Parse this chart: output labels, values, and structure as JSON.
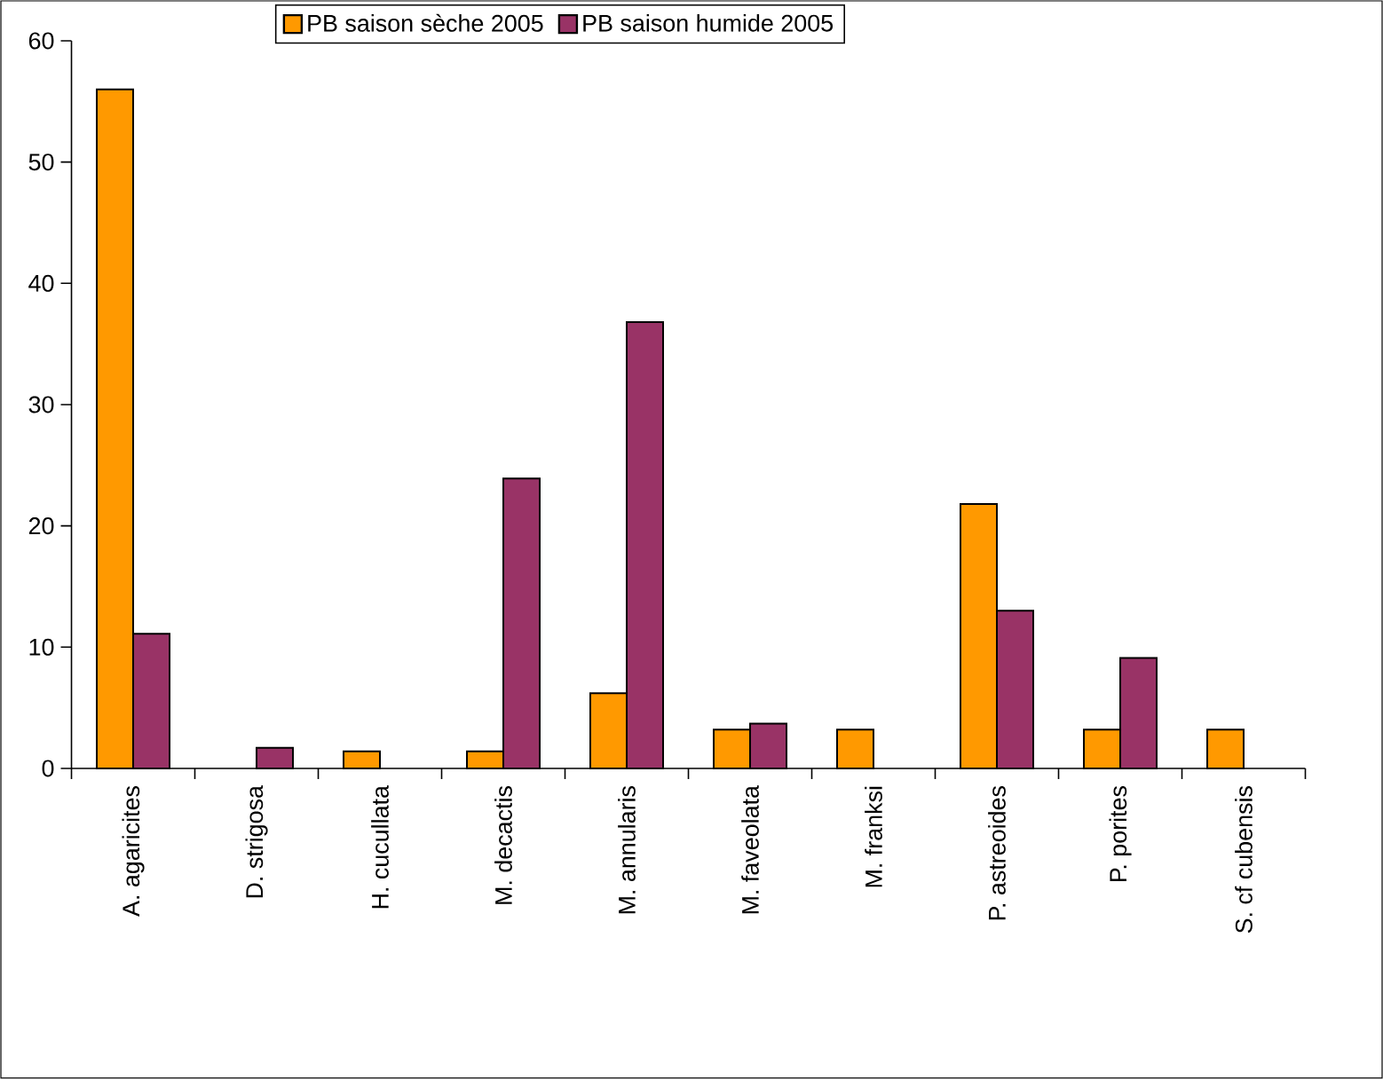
{
  "chart_data": {
    "type": "bar",
    "categories": [
      "A. agaricites",
      "D. strigosa",
      "H. cucullata",
      "M. decactis",
      "M. annularis",
      "M. faveolata",
      "M. franksi",
      "P. astreoides",
      "P. porites",
      "S. cf cubensis"
    ],
    "series": [
      {
        "name": "PB saison sèche 2005",
        "color": "#ff9900",
        "values": [
          56.0,
          null,
          1.4,
          1.4,
          6.2,
          3.2,
          3.2,
          21.8,
          3.2,
          3.2
        ]
      },
      {
        "name": "PB saison humide 2005",
        "color": "#993366",
        "values": [
          11.1,
          1.7,
          null,
          23.9,
          36.8,
          3.7,
          null,
          13.0,
          9.1,
          null
        ]
      }
    ],
    "ylim": [
      0,
      60
    ],
    "yticks": [
      0,
      10,
      20,
      30,
      40,
      50,
      60
    ],
    "legend": "top"
  }
}
